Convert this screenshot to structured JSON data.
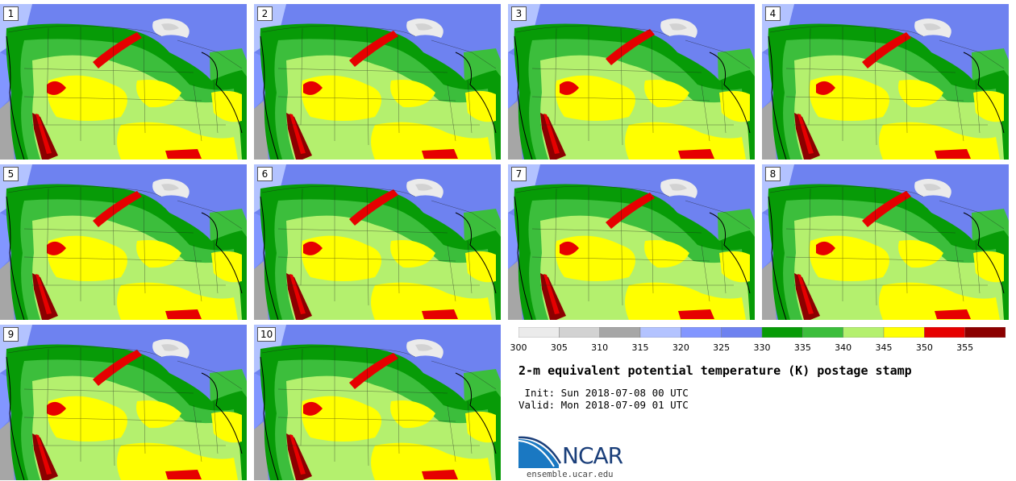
{
  "panels": [
    "1",
    "2",
    "3",
    "4",
    "5",
    "6",
    "7",
    "8",
    "9",
    "10"
  ],
  "colorbar": {
    "ticks": [
      "300",
      "305",
      "310",
      "315",
      "320",
      "325",
      "330",
      "335",
      "340",
      "345",
      "350",
      "355"
    ],
    "colors": [
      "#ebebeb",
      "#d2d2d2",
      "#a6a6a6",
      "#b3c3ff",
      "#8296ff",
      "#6e82f0",
      "#079b07",
      "#3cbe3c",
      "#b4f06e",
      "#ffff00",
      "#e60000",
      "#8c0000"
    ],
    "range": [
      300,
      360
    ]
  },
  "title": "2-m equivalent potential temperature (K) postage stamp",
  "init": " Init: Sun 2018-07-08 00 UTC",
  "valid": "Valid: Mon 2018-07-09 01 UTC",
  "logo": {
    "name": "NCAR",
    "site": "ensemble.ucar.edu"
  }
}
